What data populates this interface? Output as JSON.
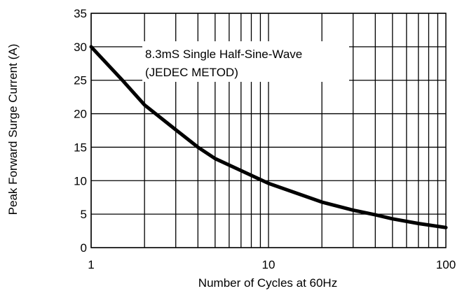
{
  "chart_data": {
    "type": "line",
    "title": "",
    "xlabel": "Number of Cycles at 60Hz",
    "ylabel": "Peak Forward Surge Current (A)",
    "x_scale": "log",
    "xlim": [
      1,
      100
    ],
    "ylim": [
      0,
      35
    ],
    "x_ticks": [
      1,
      10,
      100
    ],
    "x_tick_labels": [
      "1",
      "10",
      "100"
    ],
    "y_ticks": [
      0,
      5,
      10,
      15,
      20,
      25,
      30,
      35
    ],
    "y_tick_labels": [
      "0",
      "5",
      "10",
      "15",
      "20",
      "25",
      "30",
      "35"
    ],
    "grid": true,
    "legend": "none",
    "annotation": {
      "line1": "8.3mS Single Half-Sine-Wave",
      "line2": "(JEDEC METOD)"
    },
    "series": [
      {
        "x": [
          1,
          1.5,
          2,
          3,
          4,
          5,
          7,
          10,
          20,
          30,
          40,
          50,
          70,
          100
        ],
        "values": [
          30,
          25,
          21.3,
          17.6,
          15,
          13.3,
          11.5,
          9.6,
          6.8,
          5.6,
          4.9,
          4.3,
          3.6,
          3
        ]
      }
    ]
  }
}
